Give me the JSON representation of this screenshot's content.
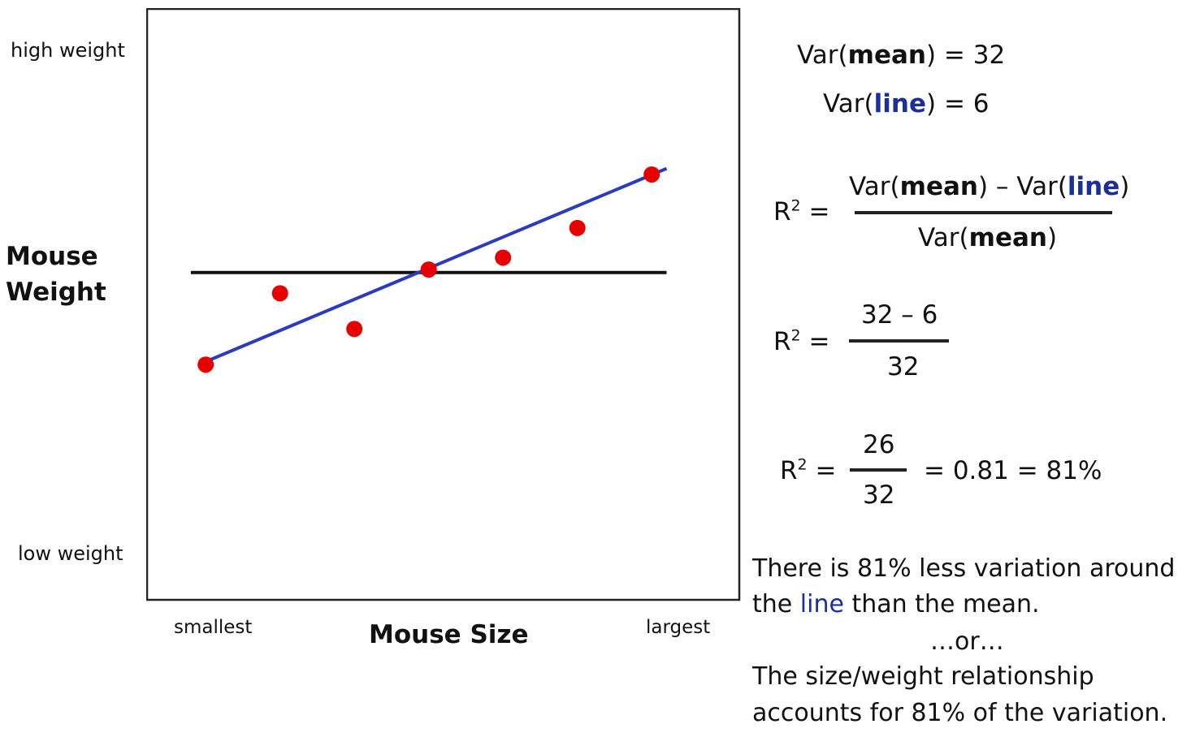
{
  "y_axis": {
    "high_label": "high weight",
    "low_label": "low weight",
    "title_line1": "Mouse",
    "title_line2": "Weight"
  },
  "x_axis": {
    "low_label": "smallest",
    "high_label": "largest",
    "title": "Mouse Size"
  },
  "chart_data": {
    "type": "scatter",
    "xlabel": "Mouse Size",
    "ylabel": "Mouse Weight",
    "xlim": [
      0,
      10
    ],
    "ylim": [
      0,
      10
    ],
    "grid": false,
    "points": [
      {
        "x": 1.0,
        "y": 4.0
      },
      {
        "x": 2.25,
        "y": 5.2
      },
      {
        "x": 3.5,
        "y": 4.6
      },
      {
        "x": 4.75,
        "y": 5.6
      },
      {
        "x": 6.0,
        "y": 5.8
      },
      {
        "x": 7.25,
        "y": 6.3
      },
      {
        "x": 8.5,
        "y": 7.2
      }
    ],
    "mean_line": {
      "x0": 0.75,
      "x1": 8.75,
      "y": 5.55,
      "color": "#111111"
    },
    "fit_line": {
      "x0": 1.0,
      "x1": 8.75,
      "y0": 4.05,
      "y1": 7.3,
      "color": "#2a3bbf"
    },
    "point_color": "#e60000"
  },
  "equations": {
    "var_mean": {
      "prefix": "Var(",
      "word": "mean",
      "suffix": ") = 32"
    },
    "var_line": {
      "prefix": "Var(",
      "word": "line",
      "suffix": ") = 6"
    },
    "r2_label": "R",
    "r2_sup": "2",
    "eq_sign": " =",
    "formula": {
      "num_a_prefix": "Var(",
      "num_a_word": "mean",
      "num_a_suffix": ") – Var(",
      "num_b_word": "line",
      "num_b_suffix": ")",
      "den_prefix": "Var(",
      "den_word": "mean",
      "den_suffix": ")"
    },
    "step2": {
      "numerator": "32 – 6",
      "denominator": "32"
    },
    "step3": {
      "numerator": "26",
      "denominator": "32",
      "result": "= 0.81 = 81%"
    }
  },
  "conclusion": {
    "line1": "There is 81% less variation around",
    "line2_prefix": "the ",
    "line2_word": "line",
    "line2_suffix": " than the mean.",
    "or": "…or…",
    "line3": "The size/weight relationship",
    "line4": "accounts for 81% of the variation."
  }
}
